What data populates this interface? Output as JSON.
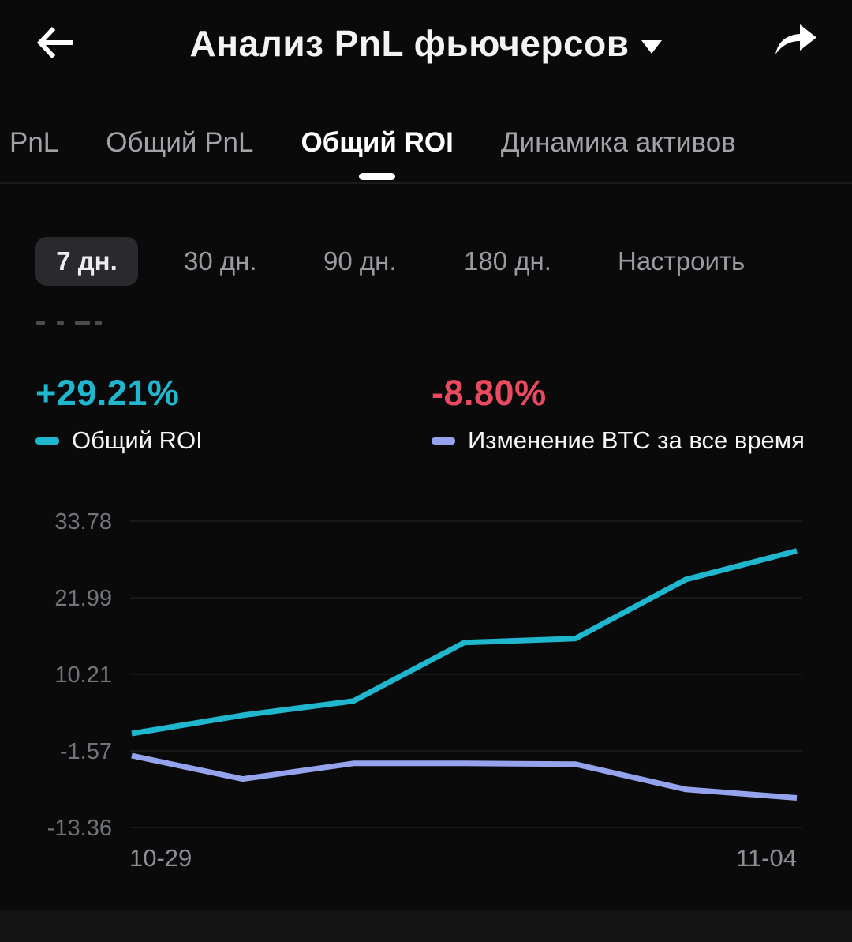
{
  "header": {
    "title": "Анализ PnL фьючерсов"
  },
  "tabs": [
    {
      "label": "PnL",
      "active": false
    },
    {
      "label": "Общий PnL",
      "active": false
    },
    {
      "label": "Общий ROI",
      "active": true
    },
    {
      "label": "Динамика активов",
      "active": false
    }
  ],
  "periods": [
    {
      "label": "7 дн.",
      "active": true
    },
    {
      "label": "30 дн.",
      "active": false
    },
    {
      "label": "90 дн.",
      "active": false
    },
    {
      "label": "180 дн.",
      "active": false
    },
    {
      "label": "Настроить",
      "active": false
    }
  ],
  "stats": {
    "roi": {
      "value": "+29.21%",
      "label": "Общий ROI"
    },
    "btc": {
      "value": "-8.80%",
      "label": "Изменение BTC за все время"
    }
  },
  "colors": {
    "roi": "#1fb6ce",
    "btc_change": "#ea4a5f",
    "btc_line": "#95a3ed",
    "gridline": "#1b1c1f",
    "axis_y": "#70747b",
    "axis_x": "#8c8f96"
  },
  "chart_data": {
    "type": "line",
    "x": [
      "10-29",
      "10-30",
      "10-31",
      "11-01",
      "11-02",
      "11-03",
      "11-04"
    ],
    "x_axis_shown_labels": [
      "10-29",
      "11-04"
    ],
    "y_ticks": [
      33.78,
      21.99,
      10.21,
      -1.57,
      -13.36
    ],
    "ylim": [
      -13.36,
      33.78
    ],
    "grid": true,
    "legend_position": "above-chart",
    "series": [
      {
        "name": "Общий ROI",
        "color": "#1fb6ce",
        "values": [
          1.1,
          3.9,
          6.1,
          15.1,
          15.7,
          24.8,
          29.21
        ]
      },
      {
        "name": "Изменение BTC за все время",
        "color": "#95a3ed",
        "values": [
          -2.3,
          -5.9,
          -3.5,
          -3.5,
          -3.6,
          -7.5,
          -8.8
        ]
      }
    ]
  }
}
